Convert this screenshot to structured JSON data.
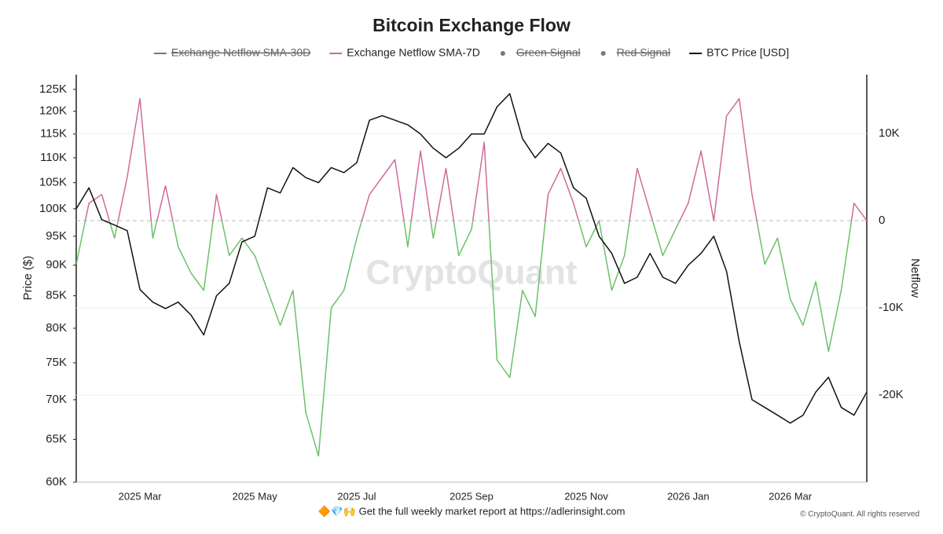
{
  "chart_data": {
    "type": "line",
    "title": "Bitcoin Exchange Flow",
    "ylabel": "Price ($)",
    "y2label": "Netflow",
    "watermark": "CryptoQuant",
    "footer": "🔶💎🙌 Get the full weekly market report at https://adlerinsight.com",
    "copyright": "© CryptoQuant. All rights reserved",
    "log_y": true,
    "categories": [
      null,
      null,
      null,
      null,
      null,
      "2025 Mar",
      null,
      null,
      null,
      null,
      null,
      null,
      null,
      null,
      "2025 May",
      null,
      null,
      null,
      null,
      null,
      null,
      null,
      "2025 Jul",
      null,
      null,
      null,
      null,
      null,
      null,
      null,
      null,
      "2025 Sep",
      null,
      null,
      null,
      null,
      null,
      null,
      null,
      null,
      "2025 Nov",
      null,
      null,
      null,
      null,
      null,
      null,
      null,
      "2026 Jan",
      null,
      null,
      null,
      null,
      null,
      null,
      null,
      "2026 Mar",
      null,
      null,
      null,
      null,
      null,
      null
    ],
    "series": [
      {
        "name": "BTC Price [USD]",
        "color": "#111111",
        "axis": "y",
        "values": [
          100000,
          104000,
          98000,
          97000,
          96000,
          86000,
          84000,
          83000,
          84000,
          82000,
          79000,
          85000,
          87000,
          94000,
          95000,
          104000,
          103000,
          108000,
          106000,
          105000,
          108000,
          107000,
          109000,
          118000,
          119000,
          118000,
          117000,
          115000,
          112000,
          110000,
          112000,
          115000,
          115000,
          121000,
          124000,
          114000,
          110000,
          113000,
          111000,
          104000,
          102000,
          95000,
          92000,
          87000,
          88000,
          92000,
          88000,
          87000,
          90000,
          92000,
          95000,
          89000,
          78000,
          70000,
          69000,
          68000,
          67000,
          68000,
          71000,
          73000,
          69000,
          68000,
          71000
        ]
      },
      {
        "name": "Exchange Netflow SMA-7D",
        "color": "#d06a9a",
        "negative_color": "#6cc06a",
        "axis": "y2",
        "values": [
          -5000,
          2000,
          3000,
          -2000,
          5000,
          14000,
          -2000,
          4000,
          -3000,
          -6000,
          -8000,
          3000,
          -4000,
          -2000,
          -4000,
          -8000,
          -12000,
          -8000,
          -22000,
          -27000,
          -10000,
          -8000,
          -2000,
          3000,
          5000,
          7000,
          -3000,
          8000,
          -2000,
          6000,
          -4000,
          -1000,
          9000,
          -16000,
          -18000,
          -8000,
          -11000,
          3000,
          6000,
          2000,
          -3000,
          0,
          -8000,
          -4000,
          6000,
          1000,
          -4000,
          -1000,
          2000,
          8000,
          0,
          12000,
          14000,
          3000,
          -5000,
          -2000,
          -9000,
          -12000,
          -7000,
          -15000,
          -8000,
          2000,
          0
        ]
      }
    ],
    "hidden_legend": [
      {
        "name": "Exchange Netflow SMA-30D",
        "color": "#777777",
        "marker": "line"
      },
      {
        "name": "Green Signal",
        "color": "#777777",
        "marker": "dot"
      },
      {
        "name": "Red Signal",
        "color": "#777777",
        "marker": "dot"
      }
    ],
    "ylim": [
      60000,
      128500
    ],
    "yticks": [
      {
        "value": 60000,
        "label": "60K"
      },
      {
        "value": 65000,
        "label": "65K"
      },
      {
        "value": 70000,
        "label": "70K"
      },
      {
        "value": 75000,
        "label": "75K"
      },
      {
        "value": 80000,
        "label": "80K"
      },
      {
        "value": 85000,
        "label": "85K"
      },
      {
        "value": 90000,
        "label": "90K"
      },
      {
        "value": 95000,
        "label": "95K"
      },
      {
        "value": 100000,
        "label": "100K"
      },
      {
        "value": 105000,
        "label": "105K"
      },
      {
        "value": 110000,
        "label": "110K"
      },
      {
        "value": 115000,
        "label": "115K"
      },
      {
        "value": 120000,
        "label": "120K"
      },
      {
        "value": 125000,
        "label": "125K"
      }
    ],
    "y2lim": [
      -30000,
      16760
    ],
    "y2ticks": [
      {
        "value": -20000,
        "label": "-20K"
      },
      {
        "value": -10000,
        "label": "-10K"
      },
      0,
      {
        "value": 10000,
        "label": "10K"
      }
    ],
    "grid": true
  }
}
